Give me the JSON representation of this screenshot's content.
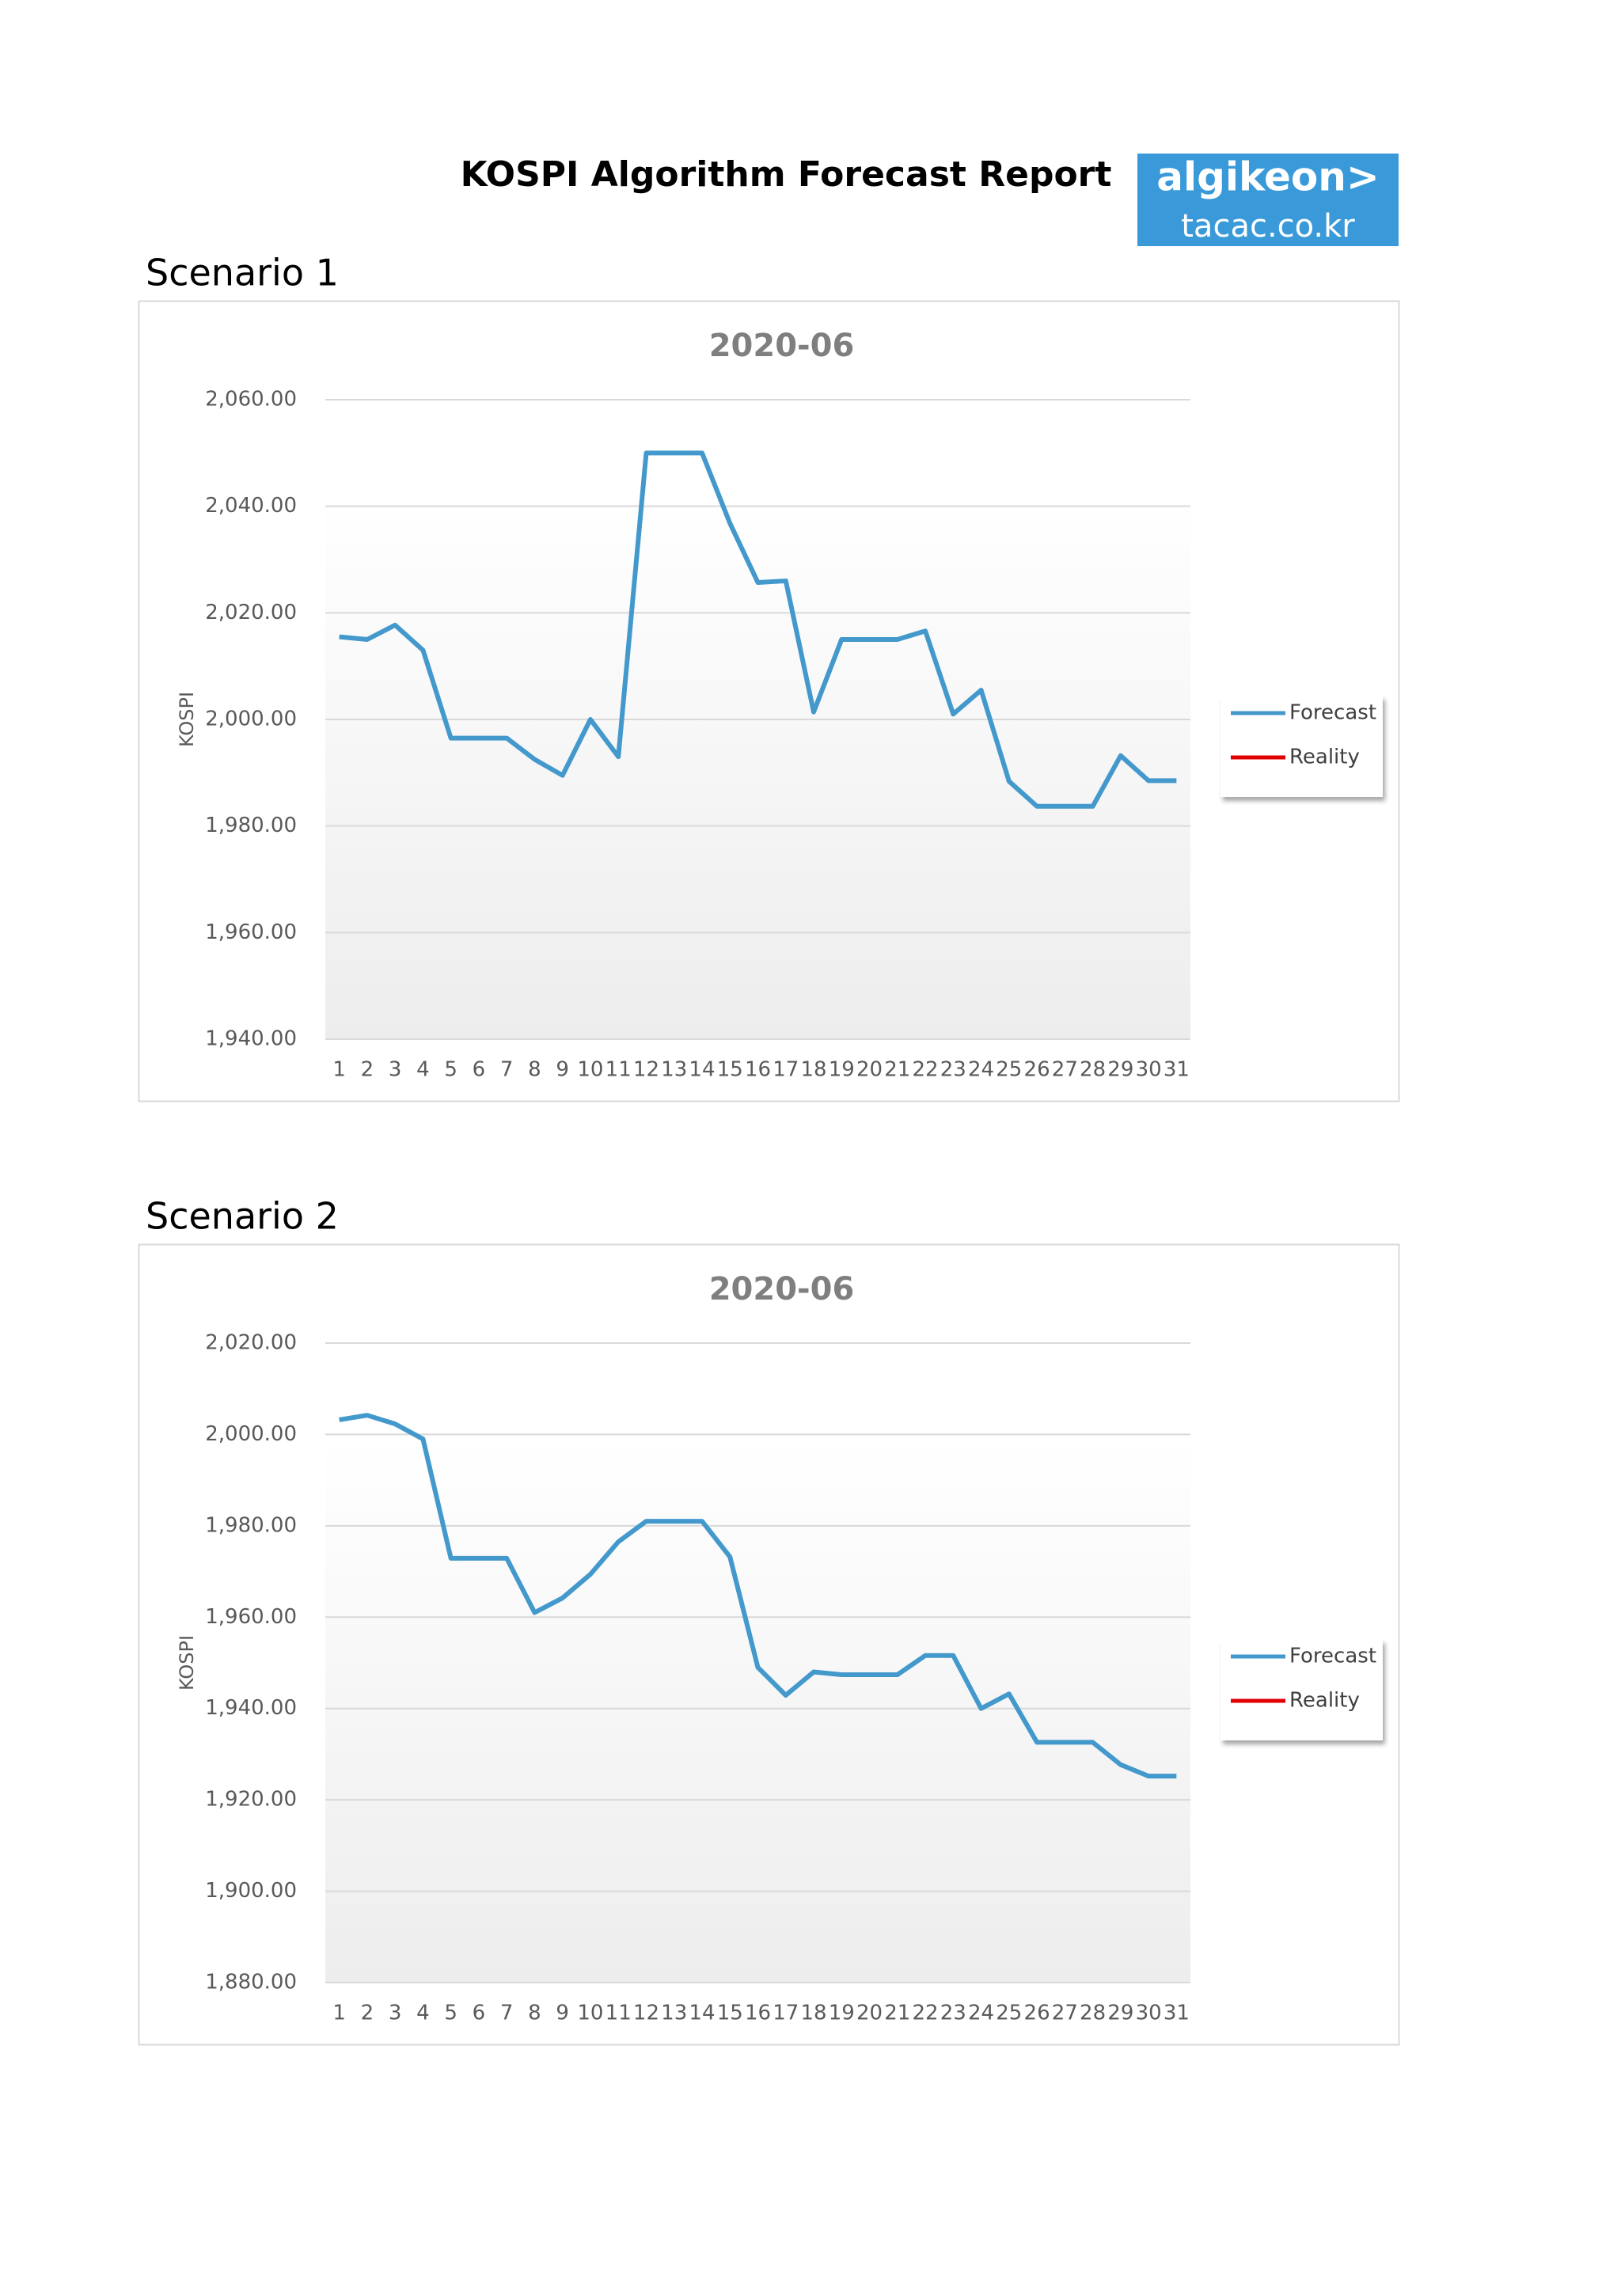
{
  "header": {
    "title": "KOSPI Algorithm Forecast Report",
    "logo": [
      "algikeon>",
      "tacac.co.kr"
    ]
  },
  "sections": [
    "Scenario 1",
    "Scenario 2"
  ],
  "chart_data": [
    {
      "type": "line",
      "title": "2020-06",
      "y_label": "KOSPI",
      "categories": [
        "1",
        "2",
        "3",
        "4",
        "5",
        "6",
        "7",
        "8",
        "9",
        "10",
        "11",
        "12",
        "13",
        "14",
        "15",
        "16",
        "17",
        "18",
        "19",
        "20",
        "21",
        "22",
        "23",
        "24",
        "25",
        "26",
        "27",
        "28",
        "29",
        "30",
        "31"
      ],
      "series": [
        {
          "name": "Forecast",
          "color": "#4499cc",
          "values": [
            2015.5,
            2015,
            2017.7,
            2013,
            1996.5,
            1996.5,
            1996.5,
            1992.5,
            1989.5,
            2000,
            1993,
            2050,
            2050,
            2050,
            2036.8,
            2025.7,
            2026,
            2001.4,
            2015,
            2015,
            2015,
            2016.6,
            2001,
            2005.5,
            1988.4,
            1983.7,
            1983.7,
            1983.7,
            1993.2,
            1988.5,
            1988.5
          ]
        },
        {
          "name": "Reality",
          "color": "#e00000",
          "values": [
            null,
            null,
            null,
            null,
            null,
            null,
            null,
            null,
            null,
            null,
            null,
            null,
            null,
            null,
            null,
            null,
            null,
            null,
            null,
            null,
            null,
            null,
            null,
            null,
            null,
            null,
            null,
            null,
            null,
            null,
            null
          ]
        }
      ],
      "ylim": [
        1940,
        2060
      ],
      "yticks": [
        {
          "value": 1940,
          "label": "1,940.00"
        },
        {
          "value": 1960,
          "label": "1,960.00"
        },
        {
          "value": 1980,
          "label": "1,980.00"
        },
        {
          "value": 2000,
          "label": "2,000.00"
        },
        {
          "value": 2020,
          "label": "2,020.00"
        },
        {
          "value": 2040,
          "label": "2,040.00"
        },
        {
          "value": 2060,
          "label": "2,060.00"
        }
      ],
      "grid": true,
      "legend": "right"
    },
    {
      "type": "line",
      "title": "2020-06",
      "y_label": "KOSPI",
      "categories": [
        "1",
        "2",
        "3",
        "4",
        "5",
        "6",
        "7",
        "8",
        "9",
        "10",
        "11",
        "12",
        "13",
        "14",
        "15",
        "16",
        "17",
        "18",
        "19",
        "20",
        "21",
        "22",
        "23",
        "24",
        "25",
        "26",
        "27",
        "28",
        "29",
        "30",
        "31"
      ],
      "series": [
        {
          "name": "Forecast",
          "color": "#4499cc",
          "values": [
            2003.2,
            2004.2,
            2002.3,
            1999,
            1972.9,
            1972.9,
            1972.9,
            1961,
            1964.2,
            1969.4,
            1976.5,
            1981,
            1981,
            1981,
            1973.2,
            1949,
            1942.9,
            1948,
            1947.4,
            1947.4,
            1947.4,
            1951.6,
            1951.6,
            1940,
            1943.2,
            1932.6,
            1932.6,
            1932.6,
            1927.7,
            1925.2,
            1925.2
          ]
        },
        {
          "name": "Reality",
          "color": "#e00000",
          "values": [
            null,
            null,
            null,
            null,
            null,
            null,
            null,
            null,
            null,
            null,
            null,
            null,
            null,
            null,
            null,
            null,
            null,
            null,
            null,
            null,
            null,
            null,
            null,
            null,
            null,
            null,
            null,
            null,
            null,
            null,
            null
          ]
        }
      ],
      "ylim": [
        1880,
        2020
      ],
      "yticks": [
        {
          "value": 1880,
          "label": "1,880.00"
        },
        {
          "value": 1900,
          "label": "1,900.00"
        },
        {
          "value": 1920,
          "label": "1,920.00"
        },
        {
          "value": 1940,
          "label": "1,940.00"
        },
        {
          "value": 1960,
          "label": "1,960.00"
        },
        {
          "value": 1980,
          "label": "1,980.00"
        },
        {
          "value": 2000,
          "label": "2,000.00"
        },
        {
          "value": 2020,
          "label": "2,020.00"
        }
      ],
      "grid": true,
      "legend": "right"
    }
  ]
}
